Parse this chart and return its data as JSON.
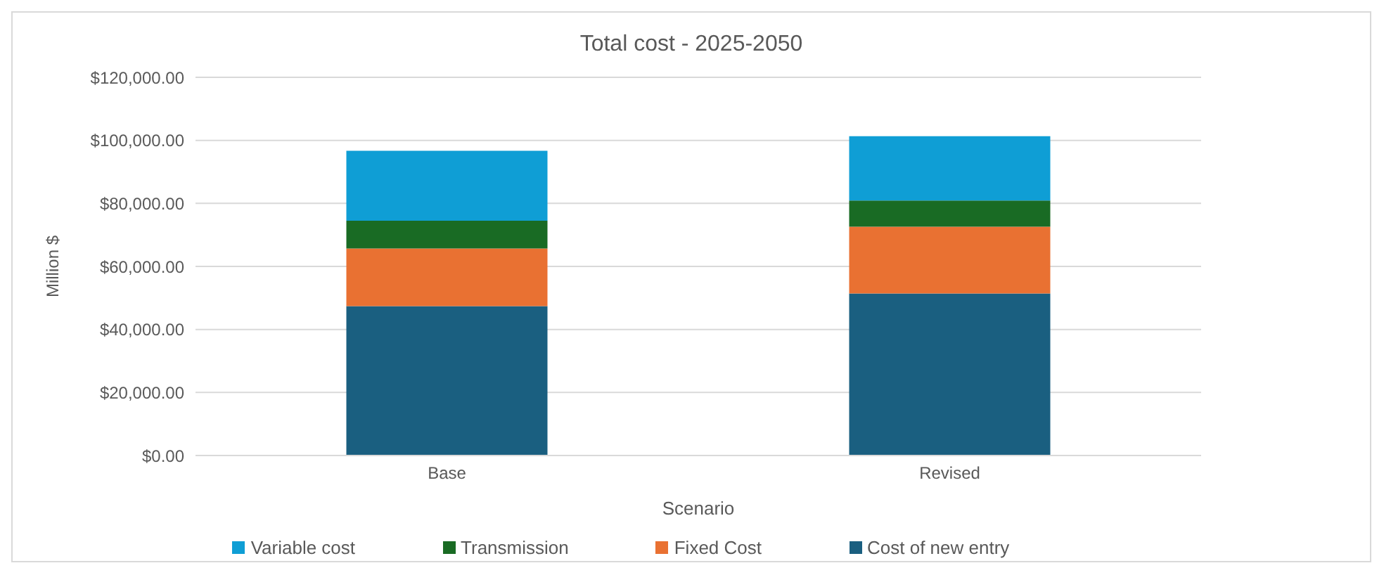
{
  "chart_data": {
    "type": "bar",
    "title": "Total cost - 2025-2050",
    "xlabel": "Scenario",
    "ylabel": "Million $",
    "categories": [
      "Base",
      "Revised"
    ],
    "stacked": true,
    "series": [
      {
        "name": "Cost of new entry",
        "color": "#1a5f80",
        "values": [
          47400,
          51400
        ]
      },
      {
        "name": "Fixed Cost",
        "color": "#e97132",
        "values": [
          18300,
          21200
        ]
      },
      {
        "name": "Transmission",
        "color": "#196b24",
        "values": [
          8800,
          8300
        ]
      },
      {
        "name": "Variable cost",
        "color": "#0f9ed5",
        "values": [
          22200,
          20400
        ]
      }
    ],
    "ylim": [
      0,
      120000
    ],
    "yticks": [
      {
        "value": 0,
        "label": "$0.00"
      },
      {
        "value": 20000,
        "label": "$20,000.00"
      },
      {
        "value": 40000,
        "label": "$40,000.00"
      },
      {
        "value": 60000,
        "label": "$60,000.00"
      },
      {
        "value": 80000,
        "label": "$80,000.00"
      },
      {
        "value": 100000,
        "label": "$100,000.00"
      },
      {
        "value": 120000,
        "label": "$120,000.00"
      }
    ],
    "grid": "y",
    "legend": "bottom"
  }
}
